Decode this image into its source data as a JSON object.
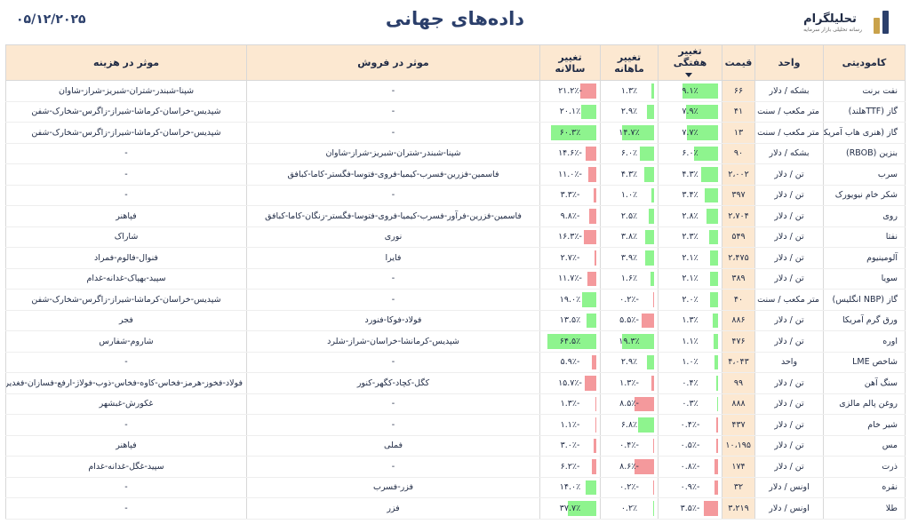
{
  "header": {
    "title": "داده‌های جهانی",
    "date": "۰۵/۱۲/۲۰۲۵",
    "logo_name": "تحلیلگرام",
    "logo_sub": "رسانه تحلیلی بازار سرمایه"
  },
  "columns": {
    "commodity": "کامودیتی",
    "unit": "واحد",
    "price": "قیمت",
    "weekly": "تغییر هفتگی",
    "monthly": "تغییر ماهانه",
    "yearly": "تغییر سالانه",
    "sales": "موثر در فروش",
    "cost": "موثر در هزینه"
  },
  "colors": {
    "positive": "#8ef48e",
    "negative": "#f4999c",
    "header_bg": "#fce8d1",
    "title": "#2b3f6b"
  },
  "rows": [
    {
      "commodity": "نفت برنت",
      "unit": "بشکه / دلار",
      "price": "۶۶",
      "weekly": "۹.۱٪",
      "weekly_val": 9.1,
      "monthly": "۱.۳٪",
      "monthly_val": 1.3,
      "yearly": "-۲۱.۲٪",
      "yearly_val": -21.2,
      "sales": "-",
      "cost": "شپنا-شبندر-شتران-شبریز-شراز-شاوان"
    },
    {
      "commodity": "گاز (TTFهلند)",
      "unit": "متر مکعب / سنت",
      "price": "۴۱",
      "weekly": "۷.۹٪",
      "weekly_val": 7.9,
      "monthly": "۲.۹٪",
      "monthly_val": 2.9,
      "yearly": "۲۰.۱٪",
      "yearly_val": 20.1,
      "sales": "-",
      "cost": "شپدیس-خراسان-کرماشا-شیراز-زاگرس-شخارک-شفن"
    },
    {
      "commodity": "گاز (هنری هاب آمریکا)",
      "unit": "متر مکعب / سنت",
      "price": "۱۳",
      "weekly": "۷.۷٪",
      "weekly_val": 7.7,
      "monthly": "۱۴.۷٪",
      "monthly_val": 14.7,
      "yearly": "۶۰.۳٪",
      "yearly_val": 60.3,
      "sales": "-",
      "cost": "شپدیس-خراسان-کرماشا-شیراز-زاگرس-شخارک-شفن"
    },
    {
      "commodity": "بنزین (RBOB)",
      "unit": "بشکه / دلار",
      "price": "۹۰",
      "weekly": "۶.۰٪",
      "weekly_val": 6.0,
      "monthly": "۶.۰٪",
      "monthly_val": 6.0,
      "yearly": "-۱۴.۶٪",
      "yearly_val": -14.6,
      "sales": "شپنا-شبندر-شتران-شبریز-شراز-شاوان",
      "cost": "-"
    },
    {
      "commodity": "سرب",
      "unit": "تن / دلار",
      "price": "۲،۰۰۲",
      "weekly": "۴.۳٪",
      "weekly_val": 4.3,
      "monthly": "۴.۳٪",
      "monthly_val": 4.3,
      "yearly": "-۱۱.۰٪",
      "yearly_val": -11.0,
      "sales": "فاسمین-فزرین-فسرب-کیمیا-فروی-فتوسا-فگستر-کاما-کبافق",
      "cost": "-"
    },
    {
      "commodity": "شکر خام نیویورک",
      "unit": "تن / دلار",
      "price": "۳۹۷",
      "weekly": "۳.۴٪",
      "weekly_val": 3.4,
      "monthly": "۱.۰٪",
      "monthly_val": 1.0,
      "yearly": "-۳.۳٪",
      "yearly_val": -3.3,
      "sales": "-",
      "cost": "-"
    },
    {
      "commodity": "روی",
      "unit": "تن / دلار",
      "price": "۲،۷۰۴",
      "weekly": "۲.۸٪",
      "weekly_val": 2.8,
      "monthly": "۲.۵٪",
      "monthly_val": 2.5,
      "yearly": "-۹.۸٪",
      "yearly_val": -9.8,
      "sales": "فاسمین-فزرین-فرآور-فسرب-کیمیا-فروی-فتوسا-فگستر-زنگان-کاما-کبافق",
      "cost": "فپاهنر"
    },
    {
      "commodity": "نفتا",
      "unit": "تن / دلار",
      "price": "۵۴۹",
      "weekly": "۲.۳٪",
      "weekly_val": 2.3,
      "monthly": "۳.۸٪",
      "monthly_val": 3.8,
      "yearly": "-۱۶.۳٪",
      "yearly_val": -16.3,
      "sales": "نوری",
      "cost": "شاراک"
    },
    {
      "commodity": "آلومینیوم",
      "unit": "تن / دلار",
      "price": "۲،۴۷۵",
      "weekly": "۲.۱٪",
      "weekly_val": 2.1,
      "monthly": "۳.۹٪",
      "monthly_val": 3.9,
      "yearly": "-۲.۷٪",
      "yearly_val": -2.7,
      "sales": "فایرا",
      "cost": "فنوال-فالوم-فمراد"
    },
    {
      "commodity": "سویا",
      "unit": "تن / دلار",
      "price": "۳۸۹",
      "weekly": "۲.۱٪",
      "weekly_val": 2.1,
      "monthly": "۱.۶٪",
      "monthly_val": 1.6,
      "yearly": "-۱۱.۷٪",
      "yearly_val": -11.7,
      "sales": "-",
      "cost": "سپید-بهپاک-غدانه-غدام"
    },
    {
      "commodity": "گاز (NBP انگلیس)",
      "unit": "متر مکعب / سنت",
      "price": "۴۰",
      "weekly": "۲.۰٪",
      "weekly_val": 2.0,
      "monthly": "-۰.۲٪",
      "monthly_val": -0.2,
      "yearly": "۱۹.۰٪",
      "yearly_val": 19.0,
      "sales": "-",
      "cost": "شپدیس-خراسان-کرماشا-شیراز-زاگرس-شخارک-شفن"
    },
    {
      "commodity": "ورق گرم آمریکا",
      "unit": "تن / دلار",
      "price": "۸۸۶",
      "weekly": "۱.۳٪",
      "weekly_val": 1.3,
      "monthly": "-۵.۵٪",
      "monthly_val": -5.5,
      "yearly": "۱۳.۵٪",
      "yearly_val": 13.5,
      "sales": "فولاد-فوکا-فنورد",
      "cost": "فجر"
    },
    {
      "commodity": "اوره",
      "unit": "تن / دلار",
      "price": "۴۷۶",
      "weekly": "۱.۱٪",
      "weekly_val": 1.1,
      "monthly": "۱۹.۳٪",
      "monthly_val": 19.3,
      "yearly": "۶۴.۵٪",
      "yearly_val": 64.5,
      "sales": "شپدیس-کرمانشا-خراسان-شراز-شلرد",
      "cost": "شاروم-شفارس"
    },
    {
      "commodity": "شاخص LME",
      "unit": "واحد",
      "price": "۴،۰۴۳",
      "weekly": "۱.۰٪",
      "weekly_val": 1.0,
      "monthly": "۲.۹٪",
      "monthly_val": 2.9,
      "yearly": "-۵.۹٪",
      "yearly_val": -5.9,
      "sales": "-",
      "cost": "-"
    },
    {
      "commodity": "سنگ آهن",
      "unit": "تن / دلار",
      "price": "۹۹",
      "weekly": "۰.۴٪",
      "weekly_val": 0.4,
      "monthly": "-۱.۳٪",
      "monthly_val": -1.3,
      "yearly": "-۱۵.۷٪",
      "yearly_val": -15.7,
      "sales": "کگل-کچاد-کگهر-کنور",
      "cost": "فولاد-فخوز-هرمز-فخاس-کاوه-فخاس-ذوب-فولاژ-ارفع-فسازان-فغدیر"
    },
    {
      "commodity": "روغن پالم مالزی",
      "unit": "تن / دلار",
      "price": "۸۸۸",
      "weekly": "۰.۳٪",
      "weekly_val": 0.3,
      "monthly": "-۸.۵٪",
      "monthly_val": -8.5,
      "yearly": "-۱.۳٪",
      "yearly_val": -1.3,
      "sales": "-",
      "cost": "غکورش-غبشهر"
    },
    {
      "commodity": "شیر خام",
      "unit": "تن / دلار",
      "price": "۴۳۷",
      "weekly": "-۰.۴٪",
      "weekly_val": -0.4,
      "monthly": "۶.۸٪",
      "monthly_val": 6.8,
      "yearly": "-۱.۱٪",
      "yearly_val": -1.1,
      "sales": "-",
      "cost": "-"
    },
    {
      "commodity": "مس",
      "unit": "تن / دلار",
      "price": "۱۰،۱۹۵",
      "weekly": "-۰.۵٪",
      "weekly_val": -0.5,
      "monthly": "-۰.۴٪",
      "monthly_val": -0.4,
      "yearly": "-۳.۰٪",
      "yearly_val": -3.0,
      "sales": "فملی",
      "cost": "فپاهنر"
    },
    {
      "commodity": "ذرت",
      "unit": "تن / دلار",
      "price": "۱۷۴",
      "weekly": "-۰.۸٪",
      "weekly_val": -0.8,
      "monthly": "-۸.۶٪",
      "monthly_val": -8.6,
      "yearly": "-۶.۲٪",
      "yearly_val": -6.2,
      "sales": "-",
      "cost": "سپید-غگل-غدانه-غدام"
    },
    {
      "commodity": "نقره",
      "unit": "اونس / دلار",
      "price": "۳۲",
      "weekly": "-۰.۹٪",
      "weekly_val": -0.9,
      "monthly": "-۰.۲٪",
      "monthly_val": -0.2,
      "yearly": "۱۴.۰٪",
      "yearly_val": 14.0,
      "sales": "فزر-فسرب",
      "cost": "-"
    },
    {
      "commodity": "طلا",
      "unit": "اونس / دلار",
      "price": "۳،۲۱۹",
      "weekly": "-۳.۵٪",
      "weekly_val": -3.5,
      "monthly": "۰.۲٪",
      "monthly_val": 0.2,
      "yearly": "۳۷.۷٪",
      "yearly_val": 37.7,
      "sales": "فزر",
      "cost": "-"
    }
  ]
}
